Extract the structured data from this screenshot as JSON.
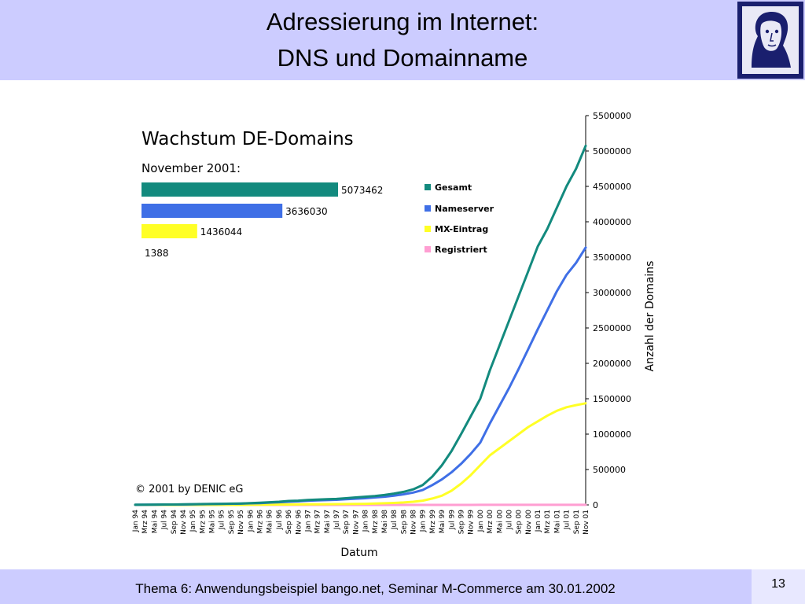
{
  "slide": {
    "title_line1": "Adressierung im Internet:",
    "title_line2": "DNS und Domainname",
    "footer": "Thema 6: Anwendungsbeispiel bango.net,  Seminar M-Commerce am 30.01.2002",
    "page_number": "13"
  },
  "colors": {
    "header_bg": "#ccccff",
    "gesamt": "#138a7e",
    "nameserver": "#3f6fe6",
    "mx": "#ffff26",
    "registriert": "#ff9ed2"
  },
  "chart_data": {
    "type": "line",
    "title": "Wachstum DE-Domains",
    "subtitle": "November 2001:",
    "copyright": "© 2001 by DENIC eG",
    "xlabel": "Datum",
    "ylabel": "Anzahl der Domains",
    "ylim": [
      0,
      5500000
    ],
    "yticks": [
      "5500000",
      "5000000",
      "4500000",
      "4000000",
      "3500000",
      "3000000",
      "2500000",
      "2000000",
      "1500000",
      "1000000",
      "500000",
      "0"
    ],
    "x": [
      "Jan 94",
      "Mrz 94",
      "Mai 94",
      "Jul 94",
      "Sep 94",
      "Nov 94",
      "Jan 95",
      "Mrz 95",
      "Mai 95",
      "Jul 95",
      "Sep 95",
      "Nov 95",
      "Jan 96",
      "Mrz 96",
      "Mai 96",
      "Jul 96",
      "Sep 96",
      "Nov 96",
      "Jan 97",
      "Mrz 97",
      "Mai 97",
      "Jul 97",
      "Sep 97",
      "Nov 97",
      "Jan 98",
      "Mrz 98",
      "Mai 98",
      "Jul 98",
      "Sep 98",
      "Nov 98",
      "Jan 99",
      "Mrz 99",
      "Mai 99",
      "Jul 99",
      "Sep 99",
      "Nov 99",
      "Jan 00",
      "Mrz 00",
      "Mai 00",
      "Jul 00",
      "Sep 00",
      "Nov 00",
      "Jan 01",
      "Mrz 01",
      "Mai 01",
      "Jul 01",
      "Sep 01",
      "Nov 01"
    ],
    "legend_position": "right",
    "summary_bars": [
      {
        "name": "Gesamt",
        "value": 5073462,
        "label": "5073462"
      },
      {
        "name": "Nameserver",
        "value": 3636030,
        "label": "3636030"
      },
      {
        "name": "MX-Eintrag",
        "value": 1436044,
        "label": "1436044"
      },
      {
        "name": "Registriert",
        "value": 1388,
        "label": "1388"
      }
    ],
    "series": [
      {
        "name": "Gesamt",
        "values": [
          2000,
          3000,
          4000,
          5000,
          6000,
          8000,
          10000,
          12000,
          14000,
          16000,
          18000,
          20000,
          25000,
          30000,
          38000,
          45000,
          55000,
          60000,
          70000,
          75000,
          80000,
          85000,
          95000,
          105000,
          115000,
          125000,
          140000,
          160000,
          185000,
          220000,
          280000,
          400000,
          560000,
          760000,
          1000000,
          1250000,
          1500000,
          1900000,
          2250000,
          2600000,
          2950000,
          3300000,
          3650000,
          3900000,
          4200000,
          4500000,
          4750000,
          5073462
        ]
      },
      {
        "name": "Nameserver",
        "values": [
          1500,
          2000,
          3000,
          4000,
          5000,
          6000,
          8000,
          10000,
          12000,
          14000,
          16000,
          18000,
          22000,
          26000,
          32000,
          38000,
          45000,
          50000,
          58000,
          63000,
          68000,
          72000,
          80000,
          88000,
          95000,
          105000,
          115000,
          130000,
          150000,
          175000,
          210000,
          280000,
          360000,
          460000,
          580000,
          720000,
          880000,
          1150000,
          1400000,
          1650000,
          1920000,
          2200000,
          2480000,
          2750000,
          3020000,
          3250000,
          3420000,
          3636030
        ]
      },
      {
        "name": "MX-Eintrag",
        "values": [
          0,
          0,
          0,
          0,
          0,
          0,
          0,
          0,
          0,
          0,
          0,
          0,
          2000,
          3000,
          4000,
          5000,
          6000,
          7000,
          8000,
          9000,
          10000,
          11000,
          12000,
          14000,
          16000,
          19000,
          23000,
          28000,
          35000,
          45000,
          60000,
          90000,
          130000,
          200000,
          300000,
          420000,
          560000,
          700000,
          800000,
          900000,
          1000000,
          1100000,
          1180000,
          1260000,
          1330000,
          1380000,
          1410000,
          1436044
        ]
      },
      {
        "name": "Registriert",
        "values": [
          0,
          0,
          0,
          0,
          0,
          0,
          0,
          0,
          0,
          0,
          0,
          0,
          0,
          0,
          0,
          0,
          0,
          0,
          0,
          0,
          0,
          0,
          0,
          0,
          0,
          0,
          0,
          0,
          0,
          0,
          0,
          0,
          0,
          0,
          0,
          0,
          1000,
          1388,
          1388,
          1388,
          1388,
          1388,
          1388,
          1388,
          1388,
          1388,
          1388,
          1388
        ]
      }
    ]
  }
}
